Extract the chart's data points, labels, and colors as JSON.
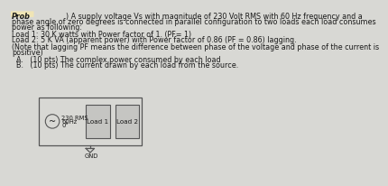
{
  "bg_color": "#d8d8d4",
  "text_color": "#1a1a1a",
  "line1a": "Prob",
  "line1b": "              ) A supply voltage Vs with magnitude of 230 Volt RMS with 60 Hz frequency and a",
  "line2": "phase angle of zero degrees is connected in parallel configuration to two loads each load consumes",
  "line3": "power as following:",
  "line4": "Load 1: 30 K watts with Power factor of 1. (PF= 1)",
  "line5": "Load 2: 5 K VA (apparent power) with Power factor of 0.86 (PF = 0.86) lagging.",
  "line6": "(Note that lagging PF means the difference between phase of the voltage and phase of the current is",
  "line7": "positive)",
  "lineA": "A.   (10 pts) The complex power consumed by each load",
  "lineB": "B.   (10 pts) The current drawn by each load from the source.",
  "source_label1": "230 RMS",
  "source_label2": "60Hz",
  "source_label3": "0°",
  "load1_label": "Load 1",
  "load2_label": "Load 2",
  "gnd_label": "GND",
  "prob_bg": "#f5e8b0",
  "wire_color": "#555555",
  "box_fill": "#c5c5c2",
  "font_size_body": 5.8,
  "font_size_circ": 5.2
}
